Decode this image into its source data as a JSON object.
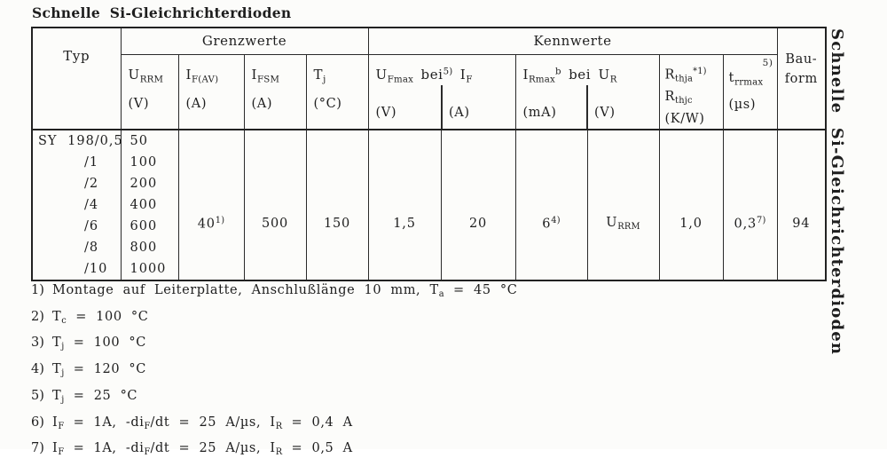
{
  "page": {
    "title": "Schnelle Si-Gleichrichterdioden",
    "side_title": "Schnelle Si-Gleichrichterdioden"
  },
  "table": {
    "typ_header": "Typ",
    "group_limits": "Grenzwerte",
    "group_characteristics": "Kennwerte",
    "bauform_line1": "Bau-",
    "bauform_line2": "form",
    "cols": {
      "urrm": {
        "sym": "U_{RRM}",
        "unit": "(V)"
      },
      "ifav": {
        "sym": "I_{F(AV)}",
        "unit": "(A)"
      },
      "ifsm": {
        "sym": "I_{FSM}",
        "unit": "(A)"
      },
      "tj": {
        "sym": "T_{j}",
        "unit": "(°C)"
      },
      "ufmax_pair": {
        "label": "U_{Fmax} bei^{5)} I_{F}",
        "unit1": "(V)",
        "unit2": "(A)"
      },
      "irmax_pair": {
        "label": "I_{Rmax}^{b} bei U_{R}",
        "unit1": "(mA)",
        "unit2": "(V)"
      },
      "rth": {
        "line1": "R_{thja}^{*1)}",
        "line2": "R_{thjc}",
        "unit": "(K/W)"
      },
      "trr": {
        "sym": "t_{rrmax}",
        "sup": "5)",
        "unit": "(µs)"
      }
    },
    "rows": [
      {
        "typ": "SY 198/0,5",
        "urrm": "50"
      },
      {
        "typ": "/1",
        "urrm": "100"
      },
      {
        "typ": "/2",
        "urrm": "200"
      },
      {
        "typ": "/4",
        "urrm": "400"
      },
      {
        "typ": "/6",
        "urrm": "600"
      },
      {
        "typ": "/8",
        "urrm": "800"
      },
      {
        "typ": "/10",
        "urrm": "1000"
      }
    ],
    "shared": {
      "ifav": "40^{1)}",
      "ifsm": "500",
      "tj": "150",
      "ufmax": "1,5",
      "if": "20",
      "irmax": "6^{4)}",
      "ur": "U_{RRM}",
      "rth": "1,0",
      "trr": "0,3^{7)}",
      "bauform": "94"
    }
  },
  "footnotes": [
    {
      "num": "1)",
      "text": "Montage auf Leiterplatte, Anschlußlänge 10 mm, T_{a} = 45 °C"
    },
    {
      "num": "2)",
      "text": "T_{c} = 100 °C"
    },
    {
      "num": "3)",
      "text": "T_{j} = 100 °C"
    },
    {
      "num": "4)",
      "text": "T_{j} = 120 °C"
    },
    {
      "num": "5)",
      "text": "T_{j} = 25 °C"
    },
    {
      "num": "6)",
      "text": "I_{F} = 1A, -di_{F}/dt = 25 A/µs, I_{R} = 0,4 A"
    },
    {
      "num": "7)",
      "text": "I_{F} = 1A, -di_{F}/dt = 25 A/µs, I_{R} = 0,5 A"
    }
  ]
}
